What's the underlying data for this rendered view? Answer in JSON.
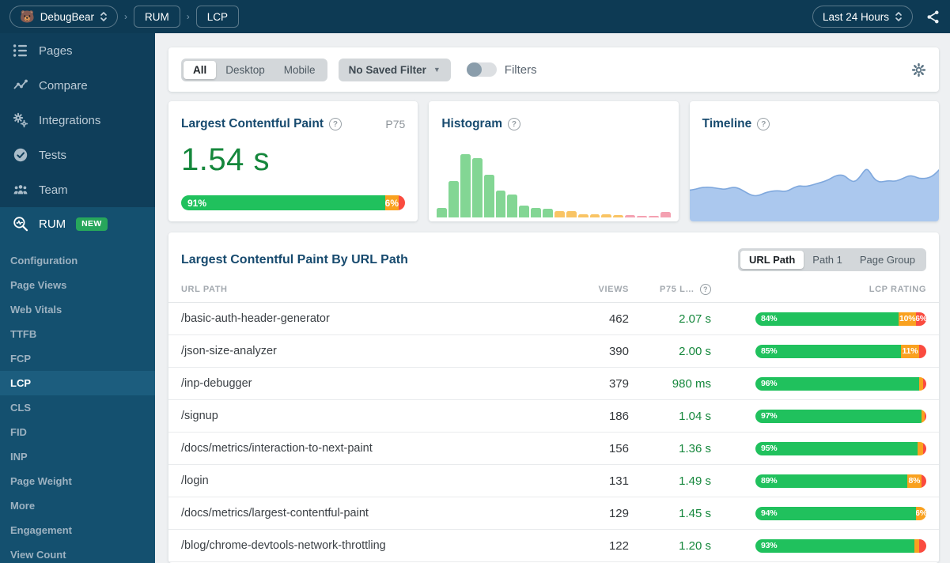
{
  "icons": {
    "question_glyph": "?",
    "dropdown_glyph": "▼"
  },
  "colors": {
    "topbar_bg": "#0d3a54",
    "sidebar_bg": "#0f3e5a",
    "active_section_bg": "#14506f",
    "active_item_bg": "#1c5d7e",
    "title_navy": "#174a6e",
    "value_green": "#15873c",
    "rating_good": "#20c15d",
    "rating_ni": "#f9a11f",
    "rating_poor": "#fa4b3f",
    "hist_good": "#83d694",
    "hist_ni": "#f9c464",
    "hist_poor": "#f4a1b1",
    "timeline_fill": "#abc8ee",
    "timeline_line": "#7fa8dd",
    "new_badge": "#27a65b"
  },
  "header": {
    "logo_emoji": "🐻",
    "workspace": "DebugBear",
    "breadcrumbs": [
      "RUM",
      "LCP"
    ],
    "time_range": "Last 24 Hours"
  },
  "sidebar": {
    "items": [
      {
        "label": "Pages",
        "icon": "list"
      },
      {
        "label": "Compare",
        "icon": "compare"
      },
      {
        "label": "Integrations",
        "icon": "integrations"
      },
      {
        "label": "Tests",
        "icon": "tests"
      },
      {
        "label": "Team",
        "icon": "team"
      },
      {
        "label": "RUM",
        "icon": "rum",
        "badge": "NEW",
        "active": true
      }
    ],
    "sub_items": [
      "Configuration",
      "Page Views",
      "Web Vitals",
      "TTFB",
      "FCP",
      "LCP",
      "CLS",
      "FID",
      "INP",
      "Page Weight",
      "More",
      "Engagement",
      "View Count"
    ],
    "active_sub_item": "LCP"
  },
  "filter_bar": {
    "segments": [
      "All",
      "Desktop",
      "Mobile"
    ],
    "active_segment": "All",
    "saved_filter": "No Saved Filter",
    "filters_label": "Filters",
    "filters_on": false
  },
  "metric_card": {
    "title": "Largest Contentful Paint",
    "percentile": "P75",
    "value": "1.54 s",
    "rating": [
      {
        "pct": 91,
        "label": "91%",
        "kind": "good"
      },
      {
        "pct": 6,
        "label": "6%",
        "kind": "ni"
      },
      {
        "pct": 3,
        "label": "",
        "kind": "poor"
      }
    ]
  },
  "histogram_card": {
    "title": "Histogram",
    "chart_data": {
      "type": "bar",
      "title": "LCP distribution histogram (axes unlabeled)",
      "values": [
        8,
        30,
        52,
        49,
        35,
        22,
        19,
        10,
        8,
        7,
        5,
        5,
        2.5,
        2.5,
        2.5,
        2,
        1.8,
        1.5,
        0.5,
        4.5
      ],
      "value_max": 52,
      "colors": [
        "good",
        "good",
        "good",
        "good",
        "good",
        "good",
        "good",
        "good",
        "good",
        "good",
        "ni",
        "ni",
        "ni",
        "ni",
        "ni",
        "ni",
        "poor",
        "poor",
        "poor",
        "poor"
      ],
      "xlabel": "",
      "ylabel": "",
      "grid": false,
      "legend": false
    }
  },
  "timeline_card": {
    "title": "Timeline",
    "chart_data": {
      "type": "area",
      "title": "LCP P75 over last 24 hours (axes unlabeled)",
      "points_pct": [
        [
          0,
          57
        ],
        [
          2,
          56
        ],
        [
          4,
          54
        ],
        [
          6,
          53
        ],
        [
          8,
          53
        ],
        [
          10,
          54
        ],
        [
          12,
          55
        ],
        [
          14,
          56
        ],
        [
          16,
          54
        ],
        [
          18,
          53
        ],
        [
          20,
          55
        ],
        [
          22,
          59
        ],
        [
          24,
          63
        ],
        [
          26,
          65
        ],
        [
          28,
          64
        ],
        [
          30,
          61
        ],
        [
          32,
          59
        ],
        [
          34,
          58
        ],
        [
          36,
          58
        ],
        [
          38,
          59
        ],
        [
          40,
          57
        ],
        [
          42,
          53
        ],
        [
          44,
          51
        ],
        [
          46,
          52
        ],
        [
          48,
          51
        ],
        [
          50,
          49
        ],
        [
          52,
          47
        ],
        [
          54,
          45
        ],
        [
          56,
          42
        ],
        [
          58,
          38
        ],
        [
          60,
          36
        ],
        [
          62,
          37
        ],
        [
          64,
          43
        ],
        [
          66,
          46
        ],
        [
          68,
          40
        ],
        [
          70,
          30
        ],
        [
          71,
          28
        ],
        [
          72,
          31
        ],
        [
          74,
          42
        ],
        [
          76,
          46
        ],
        [
          78,
          45
        ],
        [
          80,
          44
        ],
        [
          82,
          45
        ],
        [
          84,
          43
        ],
        [
          86,
          40
        ],
        [
          88,
          37
        ],
        [
          90,
          38
        ],
        [
          92,
          41
        ],
        [
          94,
          41
        ],
        [
          96,
          40
        ],
        [
          98,
          36
        ],
        [
          100,
          29
        ]
      ],
      "xlabel": "",
      "ylabel": "",
      "grid": false,
      "legend": false
    }
  },
  "table": {
    "title": "Largest Contentful Paint By URL Path",
    "view_segments": [
      "URL Path",
      "Path 1",
      "Page Group"
    ],
    "active_view": "URL Path",
    "columns": {
      "path": "URL PATH",
      "views": "VIEWS",
      "p75": "P75 L…",
      "rating": "LCP RATING"
    },
    "rows": [
      {
        "path": "/basic-auth-header-generator",
        "views": "462",
        "p75": "2.07 s",
        "rating": [
          {
            "pct": 84,
            "label": "84%",
            "kind": "good"
          },
          {
            "pct": 10,
            "label": "10%",
            "kind": "ni"
          },
          {
            "pct": 6,
            "label": "6%",
            "kind": "poor"
          }
        ]
      },
      {
        "path": "/json-size-analyzer",
        "views": "390",
        "p75": "2.00 s",
        "rating": [
          {
            "pct": 85,
            "label": "85%",
            "kind": "good"
          },
          {
            "pct": 11,
            "label": "11%",
            "kind": "ni"
          },
          {
            "pct": 4,
            "label": "",
            "kind": "poor"
          }
        ]
      },
      {
        "path": "/inp-debugger",
        "views": "379",
        "p75": "980 ms",
        "rating": [
          {
            "pct": 96,
            "label": "96%",
            "kind": "good"
          },
          {
            "pct": 2,
            "label": "",
            "kind": "ni"
          },
          {
            "pct": 2,
            "label": "",
            "kind": "poor"
          }
        ]
      },
      {
        "path": "/signup",
        "views": "186",
        "p75": "1.04 s",
        "rating": [
          {
            "pct": 97,
            "label": "97%",
            "kind": "good"
          },
          {
            "pct": 2,
            "label": "",
            "kind": "ni"
          },
          {
            "pct": 1,
            "label": "",
            "kind": "poor"
          }
        ]
      },
      {
        "path": "/docs/metrics/interaction-to-next-paint",
        "views": "156",
        "p75": "1.36 s",
        "rating": [
          {
            "pct": 95,
            "label": "95%",
            "kind": "good"
          },
          {
            "pct": 3,
            "label": "",
            "kind": "ni"
          },
          {
            "pct": 2,
            "label": "",
            "kind": "poor"
          }
        ]
      },
      {
        "path": "/login",
        "views": "131",
        "p75": "1.49 s",
        "rating": [
          {
            "pct": 89,
            "label": "89%",
            "kind": "good"
          },
          {
            "pct": 8,
            "label": "8%",
            "kind": "ni"
          },
          {
            "pct": 3,
            "label": "",
            "kind": "poor"
          }
        ]
      },
      {
        "path": "/docs/metrics/largest-contentful-paint",
        "views": "129",
        "p75": "1.45 s",
        "rating": [
          {
            "pct": 94,
            "label": "94%",
            "kind": "good"
          },
          {
            "pct": 6,
            "label": "6%",
            "kind": "ni"
          }
        ]
      },
      {
        "path": "/blog/chrome-devtools-network-throttling",
        "views": "122",
        "p75": "1.20 s",
        "rating": [
          {
            "pct": 93,
            "label": "93%",
            "kind": "good"
          },
          {
            "pct": 3,
            "label": "",
            "kind": "ni"
          },
          {
            "pct": 4,
            "label": "",
            "kind": "poor"
          }
        ]
      }
    ]
  }
}
